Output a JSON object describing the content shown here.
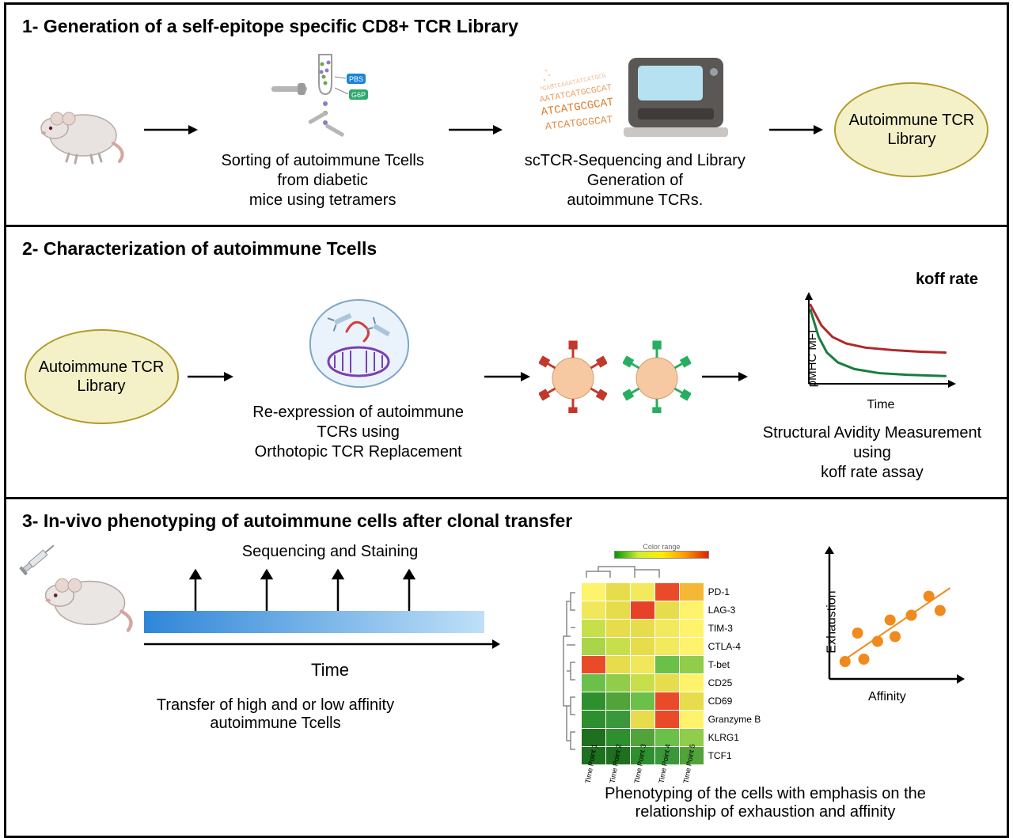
{
  "panels": {
    "p1": {
      "title": "1- Generation of a self-epitope specific CD8+ TCR Library",
      "caption_sort": "Sorting of autoimmune Tcells from diabetic\nmice using tetramers",
      "caption_seq": "scTCR-Sequencing and Library Generation of\nautoimmune TCRs.",
      "lib_label": "Autoimmune TCR\nLibrary",
      "seq_tags": [
        "PBS",
        "G6P"
      ],
      "dna_text": "ATCATGCGCAT",
      "colors": {
        "mouse_body": "#e8e3e1",
        "mouse_outline": "#b7a9a4",
        "mouse_eye": "#6b1b1b",
        "arrow": "#000000",
        "tetramer_dots_a": "#6aa84f",
        "tetramer_dots_b": "#8e7cc3",
        "tag_a_bg": "#1a84d8",
        "tag_b_bg": "#2fa86b",
        "sequencer_body": "#5a5754",
        "sequencer_screen": "#b6e1f0",
        "sequencer_feet": "#c9c6c3",
        "dna": "#e07b28",
        "lib_fill": "#f4f1c8",
        "lib_stroke": "#b09b2a"
      }
    },
    "p2": {
      "title": "2- Characterization of autoimmune Tcells",
      "lib_label": "Autoimmune TCR\nLibrary",
      "caption_replace": "Re-expression of autoimmune TCRs using\nOrthotopic TCR Replacement",
      "caption_koff": "Structural Avidity Measurement using\nkoff rate assay",
      "koff_title": "koff rate",
      "koff_ylabel": "pMHC MFI",
      "koff_xlabel": "Time",
      "colors": {
        "cell_membrane": "#c9e2f5",
        "cell_outline": "#7da7c7",
        "plasmid": "#7b3fb3",
        "guide": "#d43d3d",
        "tcell_body": "#f6c9a2",
        "tcell_outline": "#d89a6a",
        "tcr_red": "#c0392b",
        "tcr_green": "#27ae60",
        "koff_red": "#b02828",
        "koff_green": "#157f3b",
        "axis": "#000000"
      },
      "koff_chart": {
        "type": "line",
        "xlim": [
          0,
          10
        ],
        "ylim": [
          0,
          10
        ],
        "series": {
          "red": {
            "color": "#b02828",
            "width": 3,
            "points": [
              [
                0,
                9.4
              ],
              [
                0.8,
                6.9
              ],
              [
                1.6,
                5.5
              ],
              [
                2.6,
                4.7
              ],
              [
                4,
                4.2
              ],
              [
                6,
                3.9
              ],
              [
                8,
                3.7
              ],
              [
                9.8,
                3.6
              ]
            ]
          },
          "green": {
            "color": "#157f3b",
            "width": 3,
            "points": [
              [
                0,
                8.8
              ],
              [
                0.6,
                5.5
              ],
              [
                1.2,
                3.6
              ],
              [
                2,
                2.4
              ],
              [
                3.2,
                1.6
              ],
              [
                5,
                1.1
              ],
              [
                7,
                0.9
              ],
              [
                9.8,
                0.75
              ]
            ]
          }
        }
      }
    },
    "p3": {
      "title": "3- In-vivo phenotyping of autoimmune cells after clonal transfer",
      "timeline_label": "Sequencing and Staining",
      "time_label": "Time",
      "caption_transfer": "Transfer of high and or low affinity\nautoimmune Tcells",
      "caption_phenotype": "Phenotyping of the cells with emphasis on the\nrelationship of exhaustion and affinity",
      "colors": {
        "mouse_body": "#eae6e4",
        "mouse_outline": "#b7a9a4",
        "syringe_body": "#cfd3d6",
        "syringe_plunger": "#8e949a",
        "syringe_needle": "#8e949a",
        "time_bar_a": "#2f86d8",
        "time_bar_b": "#8cc7f0",
        "arrow": "#000000",
        "scatter_pt": "#ef8b1e",
        "scatter_line": "#ef8b1e",
        "axis": "#000000"
      },
      "heatmap": {
        "type": "heatmap",
        "colorbar_label": "Color range",
        "row_labels": [
          "PD-1",
          "LAG-3",
          "TIM-3",
          "CTLA-4",
          "T-bet",
          "CD25",
          "CD69",
          "Granzyme\nB",
          "KLRG1",
          "TCF1"
        ],
        "col_labels": [
          "Time\nPoint\n1",
          "Time\nPoint\n2",
          "Time\nPoint\n3",
          "Time\nPoint\n4",
          "Time\nPoint\n5"
        ],
        "cells": [
          [
            "#fff36b",
            "#e7dc4b",
            "#f2e95d",
            "#e94b2a",
            "#f4b836"
          ],
          [
            "#f0e75a",
            "#e7dc4b",
            "#e8412a",
            "#e7dc4b",
            "#fff36b"
          ],
          [
            "#c8df4c",
            "#e7dc4b",
            "#e7dc4b",
            "#f2e95d",
            "#fff36b"
          ],
          [
            "#aad44a",
            "#c8df4c",
            "#e7dc4b",
            "#f2e95d",
            "#fff36b"
          ],
          [
            "#e94b2a",
            "#e7dc4b",
            "#f0e75a",
            "#6bc04a",
            "#91cc4a"
          ],
          [
            "#6bc04a",
            "#91cc4a",
            "#c8df4c",
            "#e7dc4b",
            "#fff36b"
          ],
          [
            "#2e8f2f",
            "#52a33a",
            "#6bc04a",
            "#e94b2a",
            "#e7dc4b"
          ],
          [
            "#2e8f2f",
            "#3a973a",
            "#e7dc4b",
            "#e94b2a",
            "#fff36b"
          ],
          [
            "#1e6f1e",
            "#2e8f2f",
            "#52a33a",
            "#6bc04a",
            "#91cc4a"
          ],
          [
            "#1e6f1e",
            "#1e6f1e",
            "#2e8f2f",
            "#3a973a",
            "#52a33a"
          ]
        ]
      },
      "scatter": {
        "type": "scatter",
        "xlabel": "Affinity",
        "ylabel": "Exhaustion",
        "xlim": [
          0,
          10
        ],
        "ylim": [
          0,
          10
        ],
        "points": [
          [
            1.0,
            1.2
          ],
          [
            2.0,
            3.6
          ],
          [
            2.5,
            1.4
          ],
          [
            3.6,
            2.9
          ],
          [
            4.6,
            4.7
          ],
          [
            5.0,
            3.3
          ],
          [
            6.3,
            5.1
          ],
          [
            7.7,
            6.7
          ],
          [
            8.6,
            5.5
          ]
        ],
        "fit_line": {
          "x0": 0.6,
          "y0": 1.1,
          "x1": 9.4,
          "y1": 7.4,
          "color": "#ef8b1e",
          "width": 2
        },
        "marker_color": "#ef8b1e",
        "marker_r": 7
      }
    }
  }
}
